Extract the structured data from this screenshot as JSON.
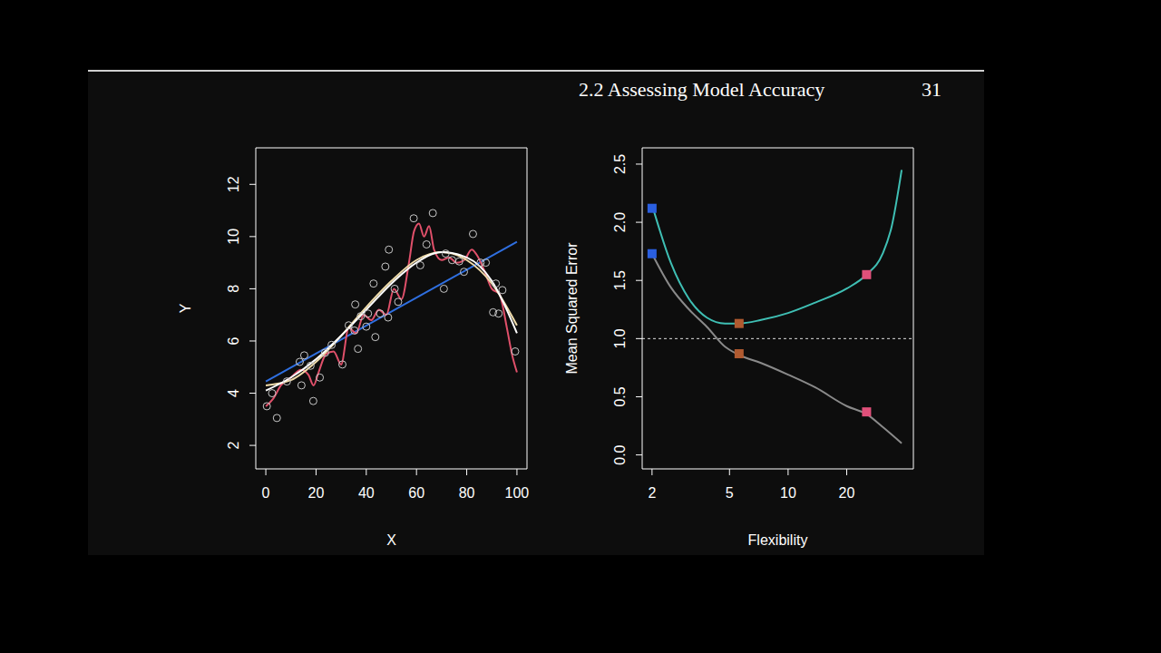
{
  "header": {
    "title": "2.2 Assessing Model Accuracy",
    "page": 31
  },
  "chart_data": [
    {
      "type": "scatter",
      "xlabel": "X",
      "ylabel": "Y",
      "xlim": [
        -4,
        104
      ],
      "ylim": [
        1.1,
        13.4
      ],
      "xticks": [
        0,
        20,
        40,
        60,
        80,
        100
      ],
      "yticks": [
        2,
        4,
        6,
        8,
        10,
        12
      ],
      "series": [
        {
          "type": "scatter",
          "marker": "circle",
          "color": "#c8c8c8",
          "x": [
            0.4,
            2.5,
            4.4,
            8.4,
            13.5,
            14.2,
            15.3,
            17.8,
            18.9,
            21.5,
            23.6,
            26.2,
            30.5,
            33,
            35.3,
            35.6,
            36.7,
            37.8,
            40,
            40.7,
            42.9,
            43.6,
            45.5,
            47.6,
            48.7,
            49,
            51.3,
            52.7,
            58.9,
            61.5,
            64,
            66.5,
            70.9,
            71.6,
            74.2,
            77,
            78.9,
            82.5,
            85.5,
            87.6,
            90.5,
            91.6,
            92.7,
            94.2,
            99.3
          ],
          "values": [
            3.5,
            4.0,
            3.05,
            4.45,
            5.2,
            4.3,
            5.45,
            5.05,
            3.7,
            4.6,
            5.55,
            5.85,
            5.1,
            6.6,
            6.4,
            7.4,
            5.7,
            6.95,
            6.55,
            7.05,
            8.2,
            6.15,
            7.05,
            8.85,
            6.9,
            9.5,
            8.0,
            7.5,
            10.7,
            8.9,
            9.7,
            10.9,
            8.0,
            9.35,
            9.1,
            9.05,
            8.65,
            10.1,
            9.0,
            9.0,
            7.1,
            8.2,
            7.05,
            7.95,
            5.6
          ]
        },
        {
          "type": "line",
          "line_style": "solid",
          "color": "#2f6fe0",
          "x": [
            0,
            100
          ],
          "values": [
            4.45,
            9.8
          ]
        },
        {
          "type": "line",
          "line_style": "solid",
          "color": "#e0506a",
          "x": [
            0,
            3,
            6,
            10,
            14,
            17,
            19,
            21,
            24,
            27,
            30,
            33,
            36,
            39,
            42,
            45,
            48,
            51,
            54,
            57,
            59,
            61,
            63,
            65,
            67,
            70,
            73,
            76,
            79,
            82,
            84,
            87,
            90,
            93,
            96,
            98,
            100
          ],
          "values": [
            3.5,
            3.8,
            4.3,
            4.6,
            4.9,
            4.7,
            4.3,
            4.8,
            5.5,
            5.6,
            5.1,
            6.5,
            6.3,
            7.0,
            6.8,
            7.2,
            7.0,
            8.0,
            7.6,
            9.0,
            10.2,
            10.5,
            10.0,
            10.4,
            9.5,
            9.1,
            9.2,
            9.0,
            9.1,
            9.5,
            9.3,
            8.7,
            8.0,
            7.8,
            6.5,
            5.5,
            4.8
          ]
        },
        {
          "type": "line",
          "line_style": "solid",
          "color": "#f0dcaa",
          "x": [
            0,
            10,
            20,
            30,
            40,
            50,
            60,
            70,
            80,
            90,
            100
          ],
          "values": [
            4.3,
            4.5,
            5.2,
            6.2,
            7.3,
            8.3,
            9.1,
            9.4,
            9.1,
            8.2,
            6.6
          ]
        },
        {
          "type": "line",
          "line_style": "solid",
          "color": "#ffffff",
          "x": [
            0,
            10,
            20,
            30,
            40,
            50,
            60,
            70,
            80,
            90,
            100
          ],
          "values": [
            4.1,
            4.6,
            5.3,
            6.2,
            7.2,
            8.2,
            9.0,
            9.4,
            9.2,
            8.3,
            6.3
          ]
        }
      ]
    },
    {
      "type": "line",
      "xlabel": "Flexibility",
      "ylabel": "Mean Squared Error",
      "log": "x",
      "xlim": [
        1.78,
        44
      ],
      "ylim": [
        -0.12,
        2.64
      ],
      "xticks": [
        2,
        5,
        10,
        20
      ],
      "yticks": [
        {
          "value": 0,
          "label": "0.0"
        },
        {
          "value": 0.5,
          "label": "0.5"
        },
        {
          "value": 1,
          "label": "1.0"
        },
        {
          "value": 1.5,
          "label": "1.5"
        },
        {
          "value": 2,
          "label": "2.0"
        },
        {
          "value": 2.5,
          "label": "2.5"
        }
      ],
      "hline": 1,
      "series": [
        {
          "type": "line",
          "line_style": "solid",
          "color": "#3fbfb4",
          "x": [
            2,
            2.5,
            3.1,
            3.83,
            4.74,
            5.6,
            7.26,
            10,
            13.8,
            20,
            25.3,
            30.6,
            34,
            38.3
          ],
          "values": [
            2.15,
            1.65,
            1.34,
            1.18,
            1.13,
            1.13,
            1.16,
            1.22,
            1.31,
            1.43,
            1.55,
            1.73,
            1.96,
            2.45
          ]
        },
        {
          "type": "line",
          "line_style": "solid",
          "color": "#8a8a8a",
          "x": [
            2,
            2.5,
            3.1,
            3.83,
            4.74,
            5.6,
            7.26,
            10,
            13.8,
            20,
            25.3,
            30.6,
            38.3
          ],
          "values": [
            1.73,
            1.44,
            1.25,
            1.1,
            0.93,
            0.86,
            0.79,
            0.69,
            0.58,
            0.42,
            0.35,
            0.24,
            0.1
          ]
        },
        {
          "type": "scatter",
          "marker": "square",
          "colors": [
            "#2a5fe0",
            "#b05a30",
            "#e0507a",
            "#2a5fe0",
            "#b05a30",
            "#e0507a"
          ],
          "x": [
            2,
            5.6,
            25.3,
            2,
            5.6,
            25.3
          ],
          "values": [
            2.12,
            1.13,
            1.55,
            1.73,
            0.87,
            0.37
          ]
        }
      ]
    }
  ]
}
